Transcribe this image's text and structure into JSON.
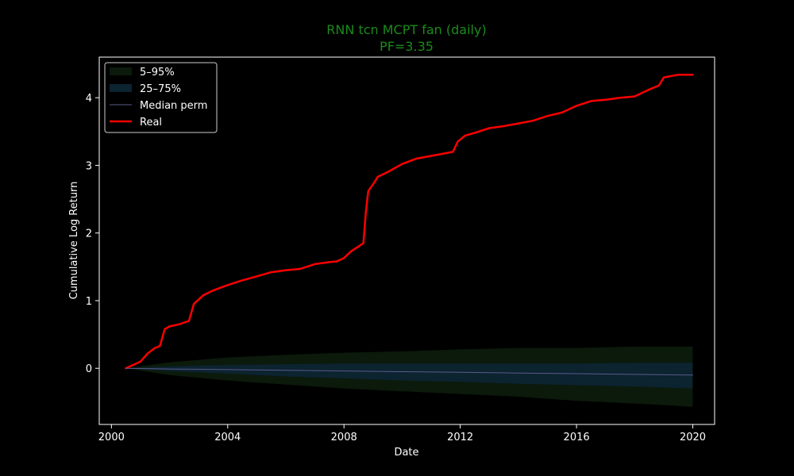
{
  "chart_data": {
    "type": "line",
    "title": "RNN tcn MCPT fan (daily)",
    "subtitle": "PF=3.35",
    "xlabel": "Date",
    "ylabel": "Cumulative Log Return",
    "xlim": [
      "1999-08-01",
      "2020-10-01"
    ],
    "ylim": [
      -0.83,
      4.6
    ],
    "x_ticks": [
      {
        "value": "2000-01-01",
        "label": "2000"
      },
      {
        "value": "2004-01-01",
        "label": "2004"
      },
      {
        "value": "2008-01-01",
        "label": "2008"
      },
      {
        "value": "2012-01-01",
        "label": "2012"
      },
      {
        "value": "2016-01-01",
        "label": "2016"
      },
      {
        "value": "2020-01-01",
        "label": "2020"
      }
    ],
    "y_ticks": [
      0,
      1,
      2,
      3,
      4
    ],
    "grid": false,
    "legend_position": "top-left",
    "legend": [
      {
        "label": "5–95%",
        "kind": "band",
        "color": "#0b1a0b"
      },
      {
        "label": "25–75%",
        "kind": "band",
        "color": "#0c2330"
      },
      {
        "label": "Median perm",
        "kind": "line",
        "color": "#5a5a8a"
      },
      {
        "label": "Real",
        "kind": "line",
        "color": "#ff0000"
      }
    ],
    "series": [
      {
        "name": "Real",
        "kind": "line",
        "color": "#ff0000",
        "points": [
          [
            "2000-07-01",
            0.0
          ],
          [
            "2000-10-01",
            0.05
          ],
          [
            "2001-01-01",
            0.1
          ],
          [
            "2001-04-01",
            0.22
          ],
          [
            "2001-07-01",
            0.3
          ],
          [
            "2001-09-01",
            0.33
          ],
          [
            "2001-11-01",
            0.58
          ],
          [
            "2002-01-01",
            0.62
          ],
          [
            "2002-05-01",
            0.65
          ],
          [
            "2002-09-01",
            0.7
          ],
          [
            "2002-11-01",
            0.95
          ],
          [
            "2003-03-01",
            1.08
          ],
          [
            "2003-07-01",
            1.15
          ],
          [
            "2004-01-01",
            1.23
          ],
          [
            "2004-07-01",
            1.3
          ],
          [
            "2005-01-01",
            1.36
          ],
          [
            "2005-07-01",
            1.42
          ],
          [
            "2006-01-01",
            1.45
          ],
          [
            "2006-07-01",
            1.47
          ],
          [
            "2007-01-01",
            1.54
          ],
          [
            "2007-07-01",
            1.57
          ],
          [
            "2007-10-01",
            1.58
          ],
          [
            "2008-01-01",
            1.63
          ],
          [
            "2008-04-01",
            1.73
          ],
          [
            "2008-07-01",
            1.8
          ],
          [
            "2008-09-01",
            1.85
          ],
          [
            "2008-10-01",
            2.3
          ],
          [
            "2008-11-01",
            2.62
          ],
          [
            "2009-01-01",
            2.72
          ],
          [
            "2009-03-01",
            2.83
          ],
          [
            "2009-07-01",
            2.9
          ],
          [
            "2010-01-01",
            3.02
          ],
          [
            "2010-07-01",
            3.1
          ],
          [
            "2011-01-01",
            3.14
          ],
          [
            "2011-07-01",
            3.18
          ],
          [
            "2011-10-01",
            3.2
          ],
          [
            "2011-12-01",
            3.35
          ],
          [
            "2012-03-01",
            3.44
          ],
          [
            "2012-07-01",
            3.48
          ],
          [
            "2013-01-01",
            3.55
          ],
          [
            "2013-07-01",
            3.58
          ],
          [
            "2014-01-01",
            3.62
          ],
          [
            "2014-07-01",
            3.66
          ],
          [
            "2015-01-01",
            3.73
          ],
          [
            "2015-07-01",
            3.78
          ],
          [
            "2016-01-01",
            3.88
          ],
          [
            "2016-07-01",
            3.95
          ],
          [
            "2017-01-01",
            3.97
          ],
          [
            "2017-07-01",
            4.0
          ],
          [
            "2018-01-01",
            4.02
          ],
          [
            "2018-07-01",
            4.12
          ],
          [
            "2018-11-01",
            4.18
          ],
          [
            "2019-01-01",
            4.3
          ],
          [
            "2019-07-01",
            4.34
          ],
          [
            "2019-12-31",
            4.34
          ]
        ]
      },
      {
        "name": "Median perm",
        "kind": "line",
        "color": "#5a5a8a",
        "points": [
          [
            "2000-07-01",
            0.0
          ],
          [
            "2002-01-01",
            -0.01
          ],
          [
            "2004-01-01",
            -0.02
          ],
          [
            "2006-01-01",
            -0.03
          ],
          [
            "2008-01-01",
            -0.04
          ],
          [
            "2010-01-01",
            -0.05
          ],
          [
            "2012-01-01",
            -0.06
          ],
          [
            "2014-01-01",
            -0.07
          ],
          [
            "2016-01-01",
            -0.08
          ],
          [
            "2018-01-01",
            -0.09
          ],
          [
            "2019-12-31",
            -0.1
          ]
        ]
      },
      {
        "name": "5–95%",
        "kind": "band",
        "color": "#0b1a0b",
        "x": [
          "2000-07-01",
          "2002-01-01",
          "2004-01-01",
          "2006-01-01",
          "2008-01-01",
          "2010-01-01",
          "2012-01-01",
          "2014-01-01",
          "2016-01-01",
          "2018-01-01",
          "2019-12-31"
        ],
        "upper": [
          0.0,
          0.09,
          0.16,
          0.2,
          0.23,
          0.25,
          0.28,
          0.3,
          0.3,
          0.32,
          0.32
        ],
        "lower": [
          0.0,
          -0.1,
          -0.18,
          -0.24,
          -0.3,
          -0.34,
          -0.38,
          -0.42,
          -0.48,
          -0.52,
          -0.57
        ]
      },
      {
        "name": "25–75%",
        "kind": "band",
        "color": "#0c2330",
        "x": [
          "2000-07-01",
          "2002-01-01",
          "2004-01-01",
          "2006-01-01",
          "2008-01-01",
          "2010-01-01",
          "2012-01-01",
          "2014-01-01",
          "2016-01-01",
          "2018-01-01",
          "2019-12-31"
        ],
        "upper": [
          0.0,
          0.03,
          0.05,
          0.06,
          0.07,
          0.07,
          0.07,
          0.07,
          0.07,
          0.08,
          0.08
        ],
        "lower": [
          0.0,
          -0.04,
          -0.08,
          -0.12,
          -0.15,
          -0.18,
          -0.2,
          -0.23,
          -0.25,
          -0.27,
          -0.3
        ]
      }
    ]
  },
  "colors": {
    "background": "#000000",
    "title": "#1a8a1a",
    "axis": "#ffffff"
  }
}
